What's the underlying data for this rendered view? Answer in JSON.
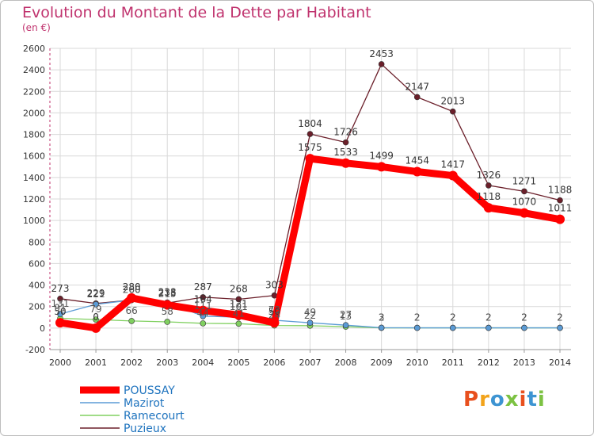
{
  "chart_data": {
    "type": "line",
    "title": "Evolution du Montant de la Dette par Habitant",
    "subtitle": "(en €)",
    "xlabel": "",
    "ylabel": "",
    "categories": [
      "2000",
      "2001",
      "2002",
      "2003",
      "2004",
      "2005",
      "2006",
      "2007",
      "2008",
      "2009",
      "2010",
      "2011",
      "2012",
      "2013",
      "2014"
    ],
    "ylim": [
      -200,
      2600
    ],
    "yticks": [
      -200,
      0,
      200,
      400,
      600,
      800,
      1000,
      1200,
      1400,
      1600,
      1800,
      2000,
      2200,
      2400,
      2600
    ],
    "grid": true,
    "legend_position": "bottom-left",
    "series": [
      {
        "name": "POUSSAY",
        "color": "#ff0000",
        "values": [
          50,
          0,
          280,
          215,
          164,
          121,
          50,
          1575,
          1533,
          1499,
          1454,
          1417,
          1118,
          1070,
          1011
        ]
      },
      {
        "name": "Mazirot",
        "color": "#5b9bd5",
        "values": [
          131,
          221,
          260,
          238,
          111,
          101,
          73,
          49,
          27,
          3,
          2,
          2,
          2,
          2,
          2
        ]
      },
      {
        "name": "Ramecourt",
        "color": "#80d060",
        "values": [
          91,
          79,
          66,
          58,
          44,
          41,
          24,
          22,
          13,
          2,
          2,
          2,
          2,
          2,
          2
        ]
      },
      {
        "name": "Puzieux",
        "color": "#6b1f2a",
        "values": [
          273,
          229,
          260,
          233,
          287,
          268,
          303,
          1804,
          1726,
          2453,
          2147,
          2013,
          1326,
          1271,
          1188
        ]
      }
    ],
    "data_labels": {
      "POUSSAY": [
        "50",
        "0",
        "280",
        "215",
        "164",
        "121",
        "50",
        "1575",
        "1533",
        "1499",
        "1454",
        "1417",
        "1118",
        "1070",
        "1011"
      ],
      "Mazirot": [
        "131",
        "221",
        "260",
        "238",
        "111",
        "101",
        "73",
        "49",
        "27",
        "3",
        "2",
        "2",
        "2",
        "2",
        "2"
      ],
      "Ramecourt": [
        "91",
        "79",
        "66",
        "58",
        "44",
        "41",
        "24",
        "22",
        "13",
        "2",
        "2",
        "2",
        "2",
        "2",
        "2"
      ],
      "Puzieux": [
        "273",
        "229",
        "260",
        "233",
        "287",
        "268",
        "303",
        "1804",
        "1726",
        "2453",
        "2147",
        "2013",
        "1326",
        "1271",
        "1188"
      ]
    }
  },
  "logo": {
    "text": "Proxiti",
    "colors": [
      "#e8501e",
      "#f2a31b",
      "#3d94d2",
      "#7cc242",
      "#e8501e",
      "#3d94d2",
      "#7cc242"
    ]
  }
}
